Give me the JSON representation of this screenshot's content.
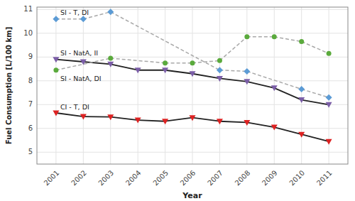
{
  "chart_data": {
    "type": "line",
    "x": [
      2001,
      2002,
      2003,
      2004,
      2005,
      2006,
      2007,
      2008,
      2009,
      2010,
      2011
    ],
    "xlim": [
      2000.3,
      2011.7
    ],
    "xticks": [
      2001,
      2002,
      2003,
      2004,
      2005,
      2006,
      2007,
      2008,
      2009,
      2010,
      2011
    ],
    "ylim": [
      4.5,
      11.1
    ],
    "yticks": [
      5,
      6,
      7,
      8,
      9,
      10,
      11
    ],
    "xlabel": "Year",
    "ylabel": "Fuel Consumption [L/100 km]",
    "grid": true,
    "series": [
      {
        "name": "SI - T, DI",
        "color": "#5b9bd5",
        "marker": "diamond",
        "line_style": "dashed",
        "values": [
          10.6,
          10.6,
          10.9,
          null,
          null,
          null,
          8.45,
          8.4,
          null,
          7.65,
          7.3
        ]
      },
      {
        "name": "SI - NatA, II",
        "color": "#7b5ea7",
        "marker": "triangle-down",
        "line_style": "solid",
        "values": [
          8.9,
          8.8,
          8.7,
          8.45,
          8.45,
          8.3,
          8.1,
          7.97,
          7.7,
          7.2,
          7.0
        ]
      },
      {
        "name": "SI - NatA, DI",
        "color": "#5aaa3c",
        "marker": "circle",
        "line_style": "dashed",
        "values": [
          8.45,
          null,
          8.95,
          null,
          8.75,
          8.75,
          8.85,
          9.85,
          9.85,
          9.65,
          9.15
        ]
      },
      {
        "name": "CI - T, DI",
        "color": "#dd2222",
        "marker": "triangle-down",
        "line_style": "solid",
        "values": [
          6.65,
          6.5,
          6.48,
          6.35,
          6.3,
          6.45,
          6.3,
          6.25,
          6.05,
          5.75,
          5.45
        ]
      }
    ]
  }
}
